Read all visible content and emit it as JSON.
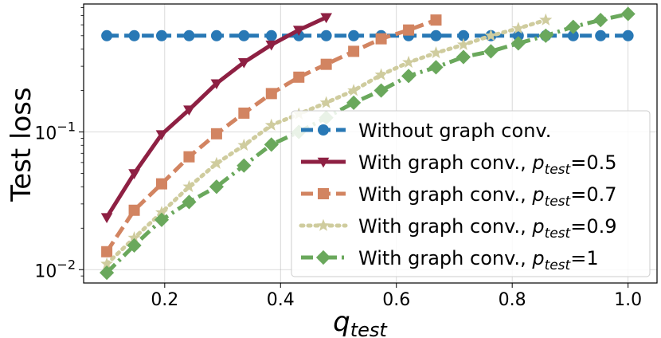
{
  "chart_data": {
    "type": "line",
    "xlabel": "q",
    "xlabel_sub": "test",
    "ylabel": "Test loss",
    "xlim": [
      0.06,
      1.05
    ],
    "ylim": [
      0.008,
      0.85
    ],
    "yscale": "log",
    "grid": true,
    "legend_position": "lower-right",
    "x_ticks": [
      {
        "value": 0.2,
        "label": "0.2"
      },
      {
        "value": 0.4,
        "label": "0.4"
      },
      {
        "value": 0.6,
        "label": "0.6"
      },
      {
        "value": 0.8,
        "label": "0.8"
      },
      {
        "value": 1.0,
        "label": "1.0"
      }
    ],
    "y_ticks": [
      {
        "value": 0.01,
        "base": "10",
        "exp": "−2"
      },
      {
        "value": 0.1,
        "base": "10",
        "exp": "−1"
      }
    ],
    "series": [
      {
        "name": "Without graph conv.",
        "legend_prefix": "Without graph conv.",
        "legend_sub": "",
        "legend_suffix": "",
        "color": "#2878b5",
        "dash": "dash",
        "marker": "circle",
        "x": [
          0.1,
          0.1474,
          0.1947,
          0.2421,
          0.2895,
          0.3368,
          0.3842,
          0.4316,
          0.4789,
          0.5263,
          0.5737,
          0.6211,
          0.6684,
          0.7158,
          0.7632,
          0.8105,
          0.8579,
          0.9053,
          0.9526,
          1.0
        ],
        "values": [
          0.5,
          0.5,
          0.5,
          0.5,
          0.5,
          0.5,
          0.5,
          0.5,
          0.5,
          0.5,
          0.5,
          0.5,
          0.5,
          0.5,
          0.5,
          0.5,
          0.5,
          0.5,
          0.5,
          0.5
        ]
      },
      {
        "name": "With graph conv., p_test=0.5",
        "legend_prefix": "With graph conv., ",
        "legend_sub": "test",
        "legend_suffix": "=0.5",
        "color": "#8e2043",
        "dash": "solid",
        "marker": "triangle-down",
        "x": [
          0.1,
          0.1474,
          0.1947,
          0.2421,
          0.2895,
          0.3368,
          0.3842,
          0.4316,
          0.4789
        ],
        "values": [
          0.024,
          0.05,
          0.096,
          0.145,
          0.225,
          0.32,
          0.43,
          0.55,
          0.68
        ]
      },
      {
        "name": "With graph conv., p_test=0.7",
        "legend_prefix": "With graph conv., ",
        "legend_sub": "test",
        "legend_suffix": "=0.7",
        "color": "#d28461",
        "dash": "dash",
        "marker": "square",
        "x": [
          0.1,
          0.1474,
          0.1947,
          0.2421,
          0.2895,
          0.3368,
          0.3842,
          0.4316,
          0.4789,
          0.5263,
          0.5737,
          0.6211,
          0.6684
        ],
        "values": [
          0.0135,
          0.027,
          0.042,
          0.066,
          0.097,
          0.137,
          0.19,
          0.25,
          0.31,
          0.385,
          0.475,
          0.55,
          0.65
        ]
      },
      {
        "name": "With graph conv., p_test=0.9",
        "legend_prefix": "With graph conv., ",
        "legend_sub": "test",
        "legend_suffix": "=0.9",
        "color": "#cfcc9e",
        "dash": "dot",
        "marker": "star",
        "x": [
          0.1,
          0.1474,
          0.1947,
          0.2421,
          0.2895,
          0.3368,
          0.3842,
          0.4316,
          0.4789,
          0.5263,
          0.5737,
          0.6211,
          0.6684,
          0.7158,
          0.7632,
          0.8105,
          0.8579
        ],
        "values": [
          0.011,
          0.017,
          0.026,
          0.04,
          0.059,
          0.08,
          0.112,
          0.135,
          0.163,
          0.2,
          0.26,
          0.32,
          0.375,
          0.43,
          0.5,
          0.565,
          0.65
        ]
      },
      {
        "name": "With graph conv., p_test=1",
        "legend_prefix": "With graph conv., ",
        "legend_sub": "test",
        "legend_suffix": "=1",
        "color": "#6aa85c",
        "dash": "dashdot",
        "marker": "diamond",
        "x": [
          0.1,
          0.1474,
          0.1947,
          0.2421,
          0.2895,
          0.3368,
          0.3842,
          0.4316,
          0.4789,
          0.5263,
          0.5737,
          0.6211,
          0.6684,
          0.7158,
          0.7632,
          0.8105,
          0.8579,
          0.9053,
          0.9526,
          1.0
        ],
        "values": [
          0.0095,
          0.015,
          0.023,
          0.031,
          0.04,
          0.057,
          0.081,
          0.1,
          0.127,
          0.163,
          0.2,
          0.255,
          0.295,
          0.35,
          0.385,
          0.44,
          0.5,
          0.58,
          0.65,
          0.72
        ]
      }
    ]
  }
}
